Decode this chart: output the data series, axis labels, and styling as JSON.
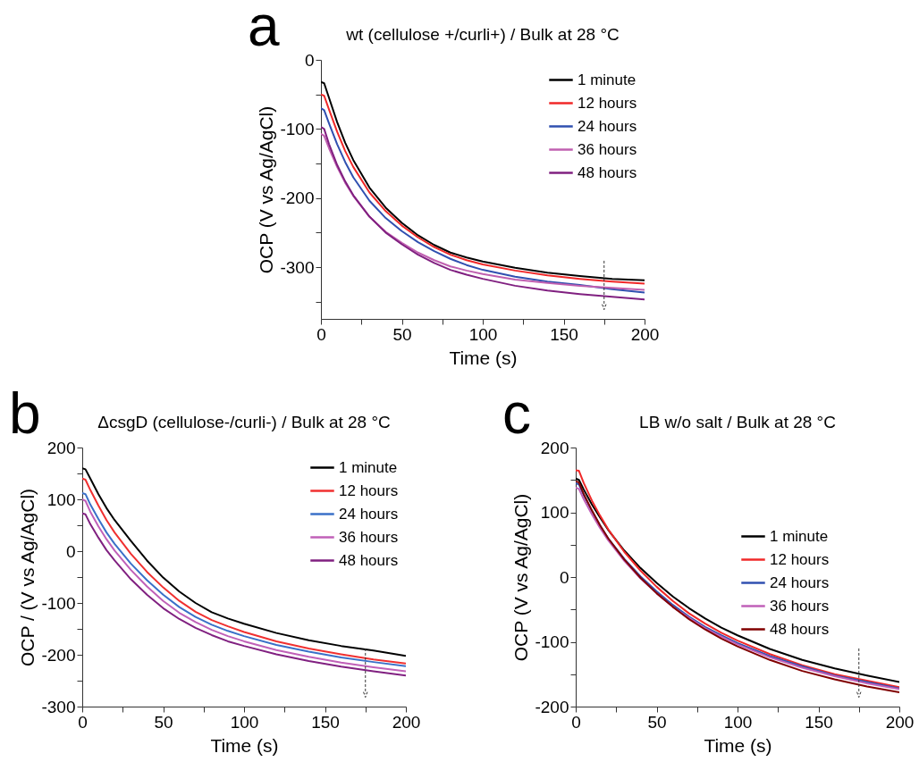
{
  "chart_data": [
    {
      "type": "line",
      "title": "wt (cellulose +/curli+) / Bulk  at 28 °C",
      "xlabel": "Time (s)",
      "ylabel": "OCP (V vs Ag/AgCl)",
      "annotations": [
        "a"
      ],
      "x": [
        0,
        2,
        5,
        10,
        15,
        20,
        30,
        40,
        50,
        60,
        70,
        80,
        90,
        100,
        120,
        140,
        160,
        180,
        200
      ],
      "series": [
        {
          "name": "1 minute",
          "color": "#000000",
          "values": [
            -32,
            -34,
            -55,
            -90,
            -120,
            -145,
            -185,
            -214,
            -236,
            -254,
            -268,
            -279,
            -286,
            -292,
            -301,
            -308,
            -313,
            -317,
            -319
          ]
        },
        {
          "name": "12 hours",
          "color": "#f02828",
          "values": [
            -50,
            -52,
            -72,
            -104,
            -132,
            -155,
            -192,
            -219,
            -240,
            -257,
            -271,
            -282,
            -290,
            -296,
            -305,
            -312,
            -317,
            -321,
            -324
          ]
        },
        {
          "name": "24 hours",
          "color": "#3050b0",
          "values": [
            -70,
            -73,
            -92,
            -122,
            -148,
            -170,
            -204,
            -229,
            -248,
            -264,
            -277,
            -288,
            -297,
            -304,
            -314,
            -321,
            -326,
            -332,
            -337
          ]
        },
        {
          "name": "36 hours",
          "color": "#c060b0",
          "values": [
            -107,
            -110,
            -128,
            -155,
            -178,
            -197,
            -227,
            -249,
            -265,
            -279,
            -290,
            -299,
            -305,
            -310,
            -318,
            -323,
            -327,
            -330,
            -333
          ]
        },
        {
          "name": "48 hours",
          "color": "#802080",
          "values": [
            -97,
            -100,
            -122,
            -152,
            -176,
            -196,
            -227,
            -250,
            -267,
            -282,
            -294,
            -304,
            -311,
            -317,
            -327,
            -334,
            -339,
            -343,
            -347
          ]
        }
      ],
      "xlim": [
        0,
        200
      ],
      "xticks": [
        0,
        {
          "value": 25,
          "label": null
        },
        50,
        {
          "value": 75,
          "label": null
        },
        100,
        {
          "value": 125,
          "label": null
        },
        150,
        {
          "value": 175,
          "label": null
        },
        200
      ],
      "ylim": [
        -375,
        0
      ],
      "yticks": [
        {
          "value": -350,
          "label": null
        },
        -300,
        {
          "value": -250,
          "label": null
        },
        -200,
        {
          "value": -150,
          "label": null
        },
        -100,
        {
          "value": -50,
          "label": null
        },
        0
      ],
      "grid": false,
      "legend": "top right",
      "marker": "none",
      "line_style": "solid"
    },
    {
      "type": "line",
      "title": "ΔcsgD (cellulose-/curli-) / Bulk  at 28 °C",
      "xlabel": "Time (s)",
      "ylabel": "OCP / (V vs Ag/AgCl)",
      "annotations": [
        "b"
      ],
      "x": [
        0,
        2,
        5,
        10,
        15,
        20,
        30,
        40,
        50,
        60,
        70,
        80,
        90,
        100,
        120,
        140,
        160,
        180,
        200
      ],
      "series": [
        {
          "name": "1 minute",
          "color": "#000000",
          "values": [
            160,
            158,
            140,
            110,
            83,
            60,
            20,
            -18,
            -51,
            -78,
            -100,
            -118,
            -130,
            -140,
            -158,
            -172,
            -183,
            -192,
            -202
          ]
        },
        {
          "name": "12 hours",
          "color": "#f03030",
          "values": [
            140,
            138,
            118,
            88,
            60,
            36,
            -5,
            -40,
            -70,
            -96,
            -117,
            -133,
            -145,
            -156,
            -174,
            -188,
            -199,
            -209,
            -217
          ]
        },
        {
          "name": "24 hours",
          "color": "#3a70c8",
          "values": [
            112,
            110,
            90,
            62,
            36,
            14,
            -24,
            -56,
            -84,
            -108,
            -127,
            -142,
            -154,
            -164,
            -181,
            -194,
            -205,
            -214,
            -222
          ]
        },
        {
          "name": "36 hours",
          "color": "#c060b8",
          "values": [
            100,
            97,
            76,
            48,
            23,
            1,
            -36,
            -68,
            -96,
            -119,
            -137,
            -152,
            -164,
            -174,
            -191,
            -204,
            -215,
            -224,
            -232
          ]
        },
        {
          "name": "48 hours",
          "color": "#802080",
          "values": [
            73,
            71,
            52,
            26,
            2,
            -18,
            -54,
            -84,
            -110,
            -131,
            -148,
            -162,
            -174,
            -183,
            -199,
            -212,
            -223,
            -232,
            -240
          ]
        }
      ],
      "xlim": [
        0,
        200
      ],
      "xticks": [
        0,
        {
          "value": 25,
          "label": null
        },
        50,
        {
          "value": 75,
          "label": null
        },
        100,
        {
          "value": 125,
          "label": null
        },
        150,
        {
          "value": 175,
          "label": null
        },
        200
      ],
      "ylim": [
        -300,
        200
      ],
      "yticks": [
        -300,
        {
          "value": -250,
          "label": null
        },
        -200,
        {
          "value": -150,
          "label": null
        },
        -100,
        {
          "value": -50,
          "label": null
        },
        0,
        {
          "value": 50,
          "label": null
        },
        100,
        {
          "value": 150,
          "label": null
        },
        200
      ],
      "grid": false,
      "legend": "top right",
      "marker": "none",
      "line_style": "solid"
    },
    {
      "type": "line",
      "title": "LB w/o salt  / Bulk  at 28 °C",
      "xlabel": "Time (s)",
      "ylabel": "OCP (V vs Ag/AgCl)",
      "annotations": [
        "c"
      ],
      "x": [
        0,
        2,
        5,
        10,
        15,
        20,
        30,
        40,
        50,
        60,
        70,
        80,
        90,
        100,
        120,
        140,
        160,
        180,
        200
      ],
      "series": [
        {
          "name": "1 minute",
          "color": "#000000",
          "values": [
            152,
            150,
            135,
            112,
            92,
            73,
            41,
            14,
            -9,
            -30,
            -48,
            -64,
            -78,
            -90,
            -111,
            -128,
            -141,
            -152,
            -162
          ]
        },
        {
          "name": "12 hours",
          "color": "#f02828",
          "values": [
            165,
            164,
            145,
            118,
            95,
            74,
            39,
            10,
            -15,
            -37,
            -56,
            -72,
            -86,
            -98,
            -119,
            -136,
            -150,
            -160,
            -170
          ]
        },
        {
          "name": "24 hours",
          "color": "#3050b0",
          "values": [
            145,
            143,
            126,
            102,
            80,
            60,
            28,
            1,
            -22,
            -43,
            -61,
            -77,
            -90,
            -102,
            -122,
            -138,
            -152,
            -162,
            -172
          ]
        },
        {
          "name": "36 hours",
          "color": "#c060b8",
          "values": [
            138,
            136,
            120,
            97,
            76,
            57,
            25,
            -2,
            -25,
            -46,
            -63,
            -79,
            -92,
            -104,
            -124,
            -140,
            -153,
            -164,
            -173
          ]
        },
        {
          "name": "48 hours",
          "color": "#800000",
          "values": [
            148,
            146,
            128,
            103,
            80,
            60,
            27,
            -1,
            -25,
            -46,
            -65,
            -81,
            -95,
            -107,
            -128,
            -145,
            -158,
            -169,
            -178
          ]
        }
      ],
      "xlim": [
        0,
        200
      ],
      "xticks": [
        0,
        {
          "value": 25,
          "label": null
        },
        50,
        {
          "value": 75,
          "label": null
        },
        100,
        {
          "value": 125,
          "label": null
        },
        150,
        {
          "value": 175,
          "label": null
        },
        200
      ],
      "ylim": [
        -200,
        200
      ],
      "yticks": [
        -200,
        {
          "value": -150,
          "label": null
        },
        -100,
        {
          "value": -50,
          "label": null
        },
        0,
        {
          "value": 50,
          "label": null
        },
        100,
        {
          "value": 150,
          "label": null
        },
        200
      ],
      "grid": false,
      "legend": "bottom right",
      "marker": "none",
      "line_style": "solid"
    }
  ]
}
